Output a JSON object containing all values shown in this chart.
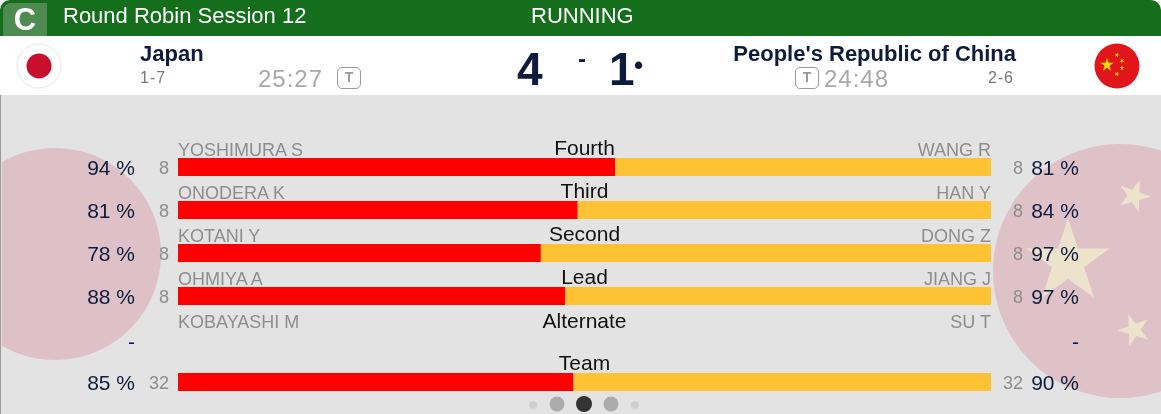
{
  "chart_data": [
    {
      "type": "other",
      "title": "Round Robin Session 12",
      "subtitle": "RUNNING",
      "annotations": [
        "C",
        "Japan",
        "1-7",
        "25:27",
        "T",
        "4",
        "-",
        "1",
        "•",
        "People's Republic of China",
        "T",
        "24:48",
        "2-6"
      ]
    },
    {
      "type": "bar",
      "orientation": "horizontal",
      "stacked": true,
      "tick_labels": "y",
      "categories": [
        "Fourth"
      ],
      "xlim": [
        0,
        175
      ],
      "series": [
        {
          "color": "#ff0000",
          "values": [
            94
          ],
          "value_labels": [
            "94 %"
          ]
        },
        {
          "color": "#fec234",
          "values": [
            81
          ],
          "value_labels": [
            "81 %"
          ]
        }
      ],
      "annotations": [
        "YOSHIMURA S",
        "WANG R",
        "8",
        "8"
      ]
    },
    {
      "type": "bar",
      "orientation": "horizontal",
      "stacked": true,
      "tick_labels": "y",
      "categories": [
        "Third"
      ],
      "xlim": [
        0,
        165
      ],
      "series": [
        {
          "color": "#ff0000",
          "values": [
            81
          ],
          "value_labels": [
            "81 %"
          ]
        },
        {
          "color": "#fec234",
          "values": [
            84
          ],
          "value_labels": [
            "84 %"
          ]
        }
      ],
      "annotations": [
        "ONODERA K",
        "HAN Y",
        "8",
        "8"
      ]
    },
    {
      "type": "bar",
      "orientation": "horizontal",
      "stacked": true,
      "tick_labels": "y",
      "categories": [
        "Second"
      ],
      "xlim": [
        0,
        175
      ],
      "series": [
        {
          "color": "#ff0000",
          "values": [
            78
          ],
          "value_labels": [
            "78 %"
          ]
        },
        {
          "color": "#fec234",
          "values": [
            97
          ],
          "value_labels": [
            "97 %"
          ]
        }
      ],
      "annotations": [
        "KOTANI Y",
        "DONG Z",
        "8",
        "8"
      ]
    },
    {
      "type": "bar",
      "orientation": "horizontal",
      "stacked": true,
      "tick_labels": "y",
      "categories": [
        "Lead"
      ],
      "xlim": [
        0,
        185
      ],
      "series": [
        {
          "color": "#ff0000",
          "values": [
            88
          ],
          "value_labels": [
            "88 %"
          ]
        },
        {
          "color": "#fec234",
          "values": [
            97
          ],
          "value_labels": [
            "97 %"
          ]
        }
      ],
      "annotations": [
        "OHMIYA A",
        "JIANG J",
        "8",
        "8"
      ]
    },
    {
      "type": "other",
      "title": "Alternate",
      "annotations": [
        "KOBAYASHI M",
        "SU T",
        "-",
        "-"
      ]
    },
    {
      "type": "bar",
      "orientation": "horizontal",
      "stacked": true,
      "tick_labels": "y",
      "categories": [
        "Team"
      ],
      "xlim": [
        0,
        175
      ],
      "series": [
        {
          "color": "#ff0000",
          "values": [
            85
          ],
          "value_labels": [
            "85 %"
          ]
        },
        {
          "color": "#fec234",
          "values": [
            90
          ],
          "value_labels": [
            "90 %"
          ]
        }
      ],
      "annotations": [
        "32",
        "32"
      ]
    }
  ]
}
